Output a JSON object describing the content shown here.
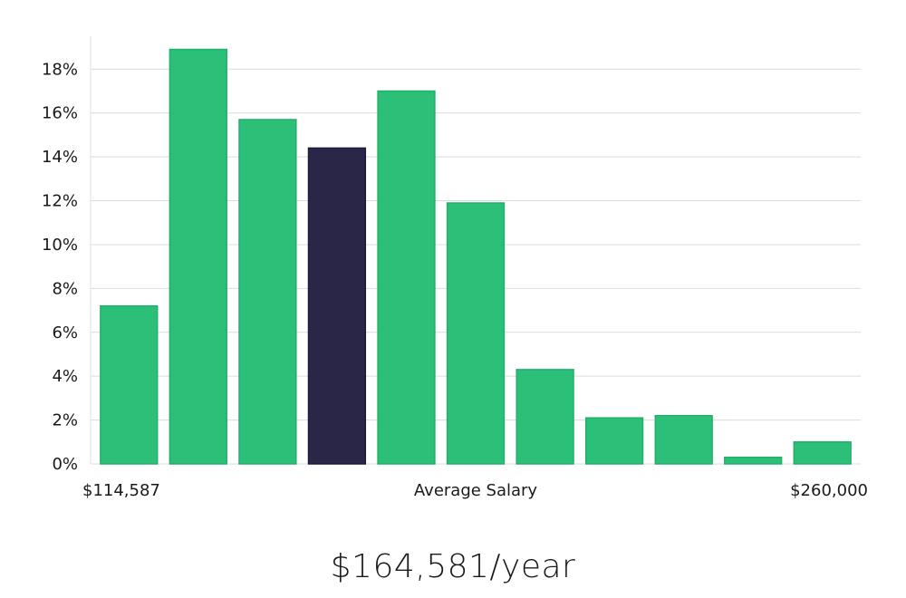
{
  "chart_data": {
    "type": "bar",
    "title": "",
    "xlabel": "Average Salary",
    "ylabel": "",
    "x_range_labels": {
      "min": "$114,587",
      "max": "$260,000"
    },
    "ylim": [
      0,
      19.5
    ],
    "yticks": [
      0,
      2,
      4,
      6,
      8,
      10,
      12,
      14,
      16,
      18
    ],
    "ytick_labels": [
      "0%",
      "2%",
      "4%",
      "6%",
      "8%",
      "10%",
      "12%",
      "14%",
      "16%",
      "18%"
    ],
    "values": [
      7.2,
      18.9,
      15.7,
      14.4,
      17.0,
      11.9,
      4.3,
      2.1,
      2.2,
      0.3,
      1.0
    ],
    "highlight_index": 3,
    "grid": true,
    "colors": {
      "bar": "#2bbf78",
      "bar_stroke": "#22b06b",
      "highlight": "#2a2647",
      "highlight_stroke": "#1e1b36"
    }
  },
  "summary": {
    "salary_text": "$164,581/year"
  }
}
